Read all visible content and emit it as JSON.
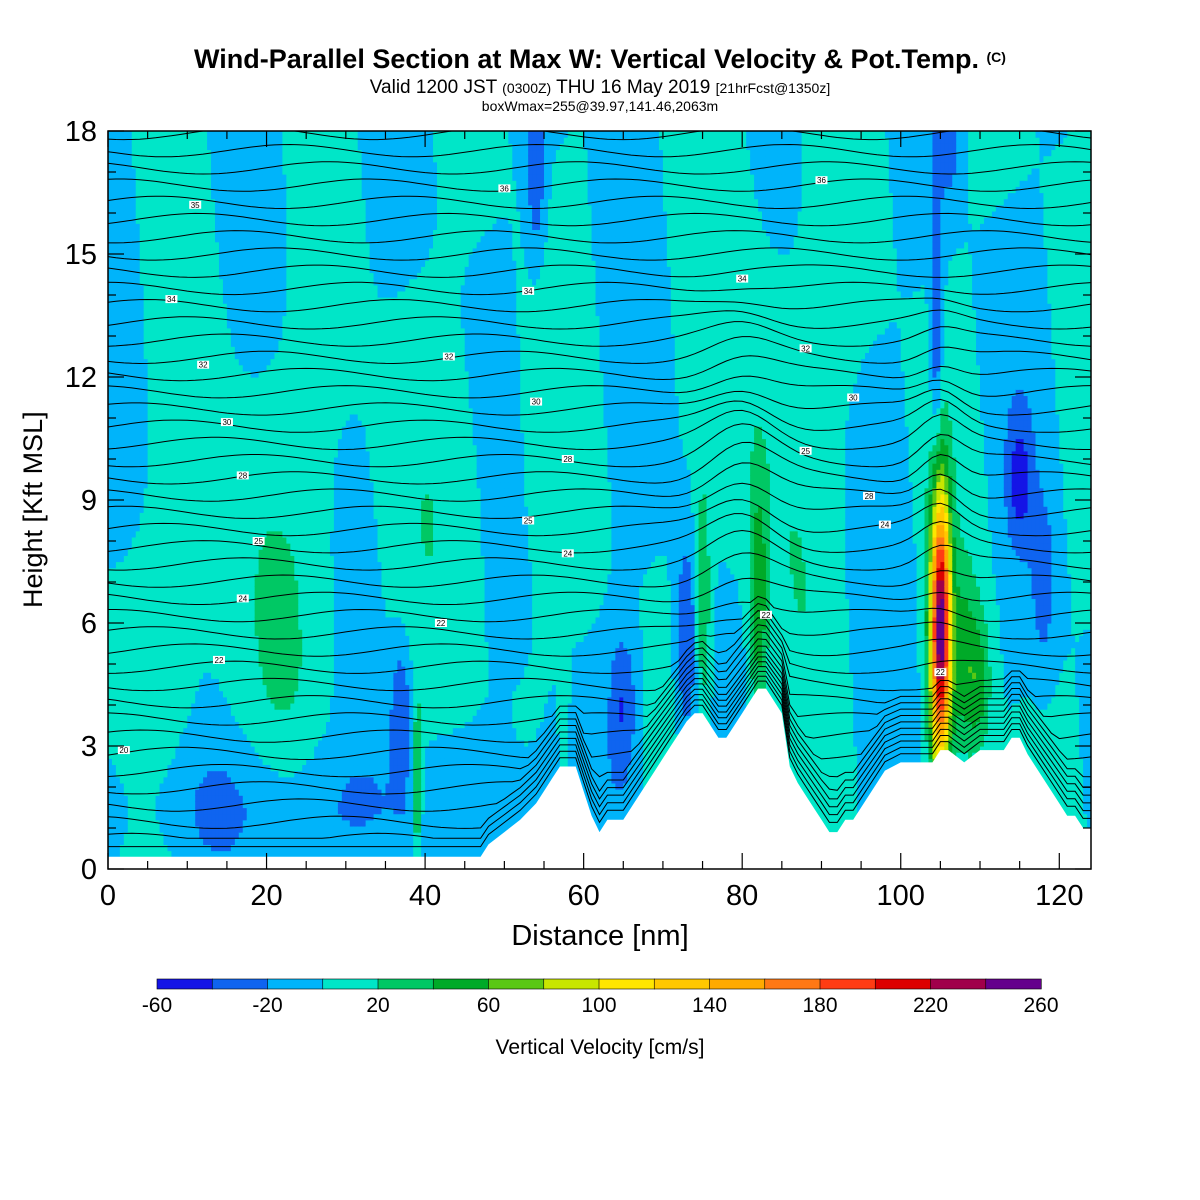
{
  "header": {
    "title": "Wind-Parallel Section at Max W: Vertical Velocity & Pot.Temp.",
    "title_mark": "(C)",
    "valid_prefix": "Valid 1200 JST",
    "valid_utc": "(0300Z)",
    "valid_date": "THU 16 May 2019",
    "forecast": "[21hrFcst@1350z]",
    "box_info": "boxWmax=255@39.97,141.46,2063m"
  },
  "chart_data": {
    "type": "heatmap",
    "title": "Wind-Parallel Section at Max W: Vertical Velocity & Pot.Temp.",
    "xlabel": "Distance [nm]",
    "ylabel": "Height [Kft MSL]",
    "xlim": [
      0,
      124
    ],
    "ylim": [
      0,
      18
    ],
    "x_ticks": [
      0,
      20,
      40,
      60,
      80,
      100,
      120
    ],
    "y_ticks": [
      0,
      3,
      6,
      9,
      12,
      15,
      18
    ],
    "colorbar": {
      "label": "Vertical Velocity [cm/s]",
      "tick_labels": [
        -60,
        -20,
        20,
        60,
        100,
        140,
        180,
        220,
        260
      ],
      "levels": [
        -60,
        -40,
        -20,
        0,
        20,
        40,
        60,
        80,
        100,
        120,
        140,
        160,
        180,
        200,
        220,
        240,
        260
      ],
      "colors": [
        "#1414e6",
        "#0f64f0",
        "#00b4fa",
        "#00e6c8",
        "#00c864",
        "#00aa28",
        "#5ac814",
        "#c8e600",
        "#ffe600",
        "#ffc800",
        "#ffaa00",
        "#ff7814",
        "#ff3c14",
        "#dc0000",
        "#a0004b",
        "#64008c"
      ]
    },
    "terrain_profile": {
      "x": [
        0,
        47,
        48,
        50,
        52,
        54,
        55,
        56,
        57,
        59,
        60,
        61,
        62,
        63,
        64,
        65,
        66,
        67,
        68,
        69,
        70,
        71,
        72,
        73,
        74,
        75,
        76,
        77,
        78,
        79,
        80,
        81,
        82,
        83,
        84,
        85,
        86,
        87,
        88,
        89,
        90,
        91,
        92,
        93,
        94,
        95,
        96,
        97,
        98,
        100,
        102,
        104,
        105,
        106,
        108,
        110,
        112,
        113,
        114,
        115,
        116,
        117,
        118,
        119,
        120,
        121,
        122,
        123,
        124
      ],
      "height_kft": [
        0.3,
        0.3,
        0.6,
        0.9,
        1.2,
        1.6,
        1.9,
        2.2,
        2.5,
        2.5,
        1.9,
        1.3,
        0.9,
        1.2,
        1.2,
        1.2,
        1.5,
        1.8,
        2.1,
        2.4,
        2.7,
        3.0,
        3.3,
        3.6,
        3.8,
        3.8,
        3.5,
        3.2,
        3.2,
        3.5,
        3.8,
        4.1,
        4.4,
        4.4,
        4.1,
        3.8,
        2.5,
        2.1,
        1.8,
        1.5,
        1.2,
        0.9,
        0.9,
        1.2,
        1.2,
        1.5,
        1.8,
        2.1,
        2.4,
        2.6,
        2.6,
        2.6,
        2.9,
        2.9,
        2.6,
        2.9,
        2.9,
        2.9,
        3.2,
        3.2,
        2.8,
        2.5,
        2.2,
        1.9,
        1.6,
        1.3,
        1.3,
        1.0,
        1.0
      ]
    },
    "theta_contour_labels": [
      {
        "label": "20",
        "x": 2,
        "y": 2.9
      },
      {
        "label": "22",
        "x": 14,
        "y": 5.1
      },
      {
        "label": "22",
        "x": 42,
        "y": 6.0
      },
      {
        "label": "22",
        "x": 83,
        "y": 6.2
      },
      {
        "label": "22",
        "x": 105,
        "y": 4.8
      },
      {
        "label": "24",
        "x": 17,
        "y": 6.6
      },
      {
        "label": "24",
        "x": 58,
        "y": 7.7
      },
      {
        "label": "24",
        "x": 98,
        "y": 8.4
      },
      {
        "label": "25",
        "x": 19,
        "y": 8.0
      },
      {
        "label": "25",
        "x": 53,
        "y": 8.5
      },
      {
        "label": "25",
        "x": 88,
        "y": 10.2
      },
      {
        "label": "28",
        "x": 17,
        "y": 9.6
      },
      {
        "label": "28",
        "x": 58,
        "y": 10.0
      },
      {
        "label": "28",
        "x": 96,
        "y": 9.1
      },
      {
        "label": "30",
        "x": 15,
        "y": 10.9
      },
      {
        "label": "30",
        "x": 54,
        "y": 11.4
      },
      {
        "label": "30",
        "x": 94,
        "y": 11.5
      },
      {
        "label": "32",
        "x": 12,
        "y": 12.3
      },
      {
        "label": "32",
        "x": 43,
        "y": 12.5
      },
      {
        "label": "32",
        "x": 88,
        "y": 12.7
      },
      {
        "label": "34",
        "x": 8,
        "y": 13.9
      },
      {
        "label": "34",
        "x": 53,
        "y": 14.1
      },
      {
        "label": "34",
        "x": 80,
        "y": 14.4
      },
      {
        "label": "35",
        "x": 11,
        "y": 16.2
      },
      {
        "label": "36",
        "x": 50,
        "y": 16.6
      },
      {
        "label": "36",
        "x": 90,
        "y": 16.8
      }
    ]
  }
}
